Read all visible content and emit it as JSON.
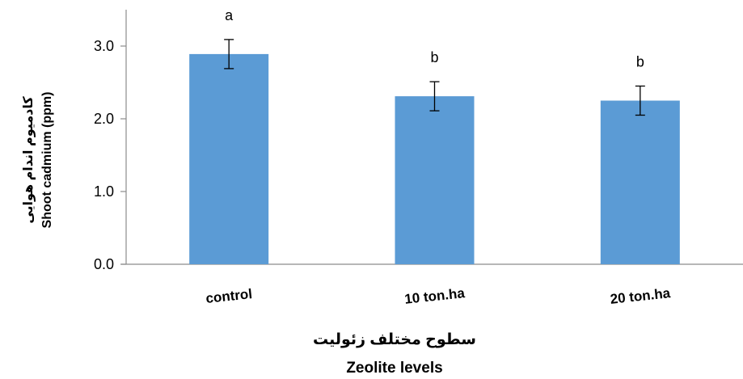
{
  "chart_data": {
    "type": "bar",
    "categories": [
      "control",
      "10 ton.ha",
      "20 ton.ha"
    ],
    "values": [
      2.89,
      2.31,
      2.25
    ],
    "errors": [
      0.2,
      0.2,
      0.2
    ],
    "significance": [
      "a",
      "b",
      "b"
    ],
    "bar_color": "#5b9bd5",
    "ylim": [
      0,
      3.5
    ],
    "yticks": [
      "0.0",
      "1.0",
      "2.0",
      "3.0"
    ],
    "ytick_values": [
      0,
      1,
      2,
      3
    ],
    "ylabel_fa": "کادمیوم اندام هوایی",
    "ylabel": "Shoot cadmium (ppm)",
    "xlabel_fa": "سطوح مختلف زئولیت",
    "xlabel": "Zeolite levels",
    "grid": false,
    "legend": "none"
  }
}
